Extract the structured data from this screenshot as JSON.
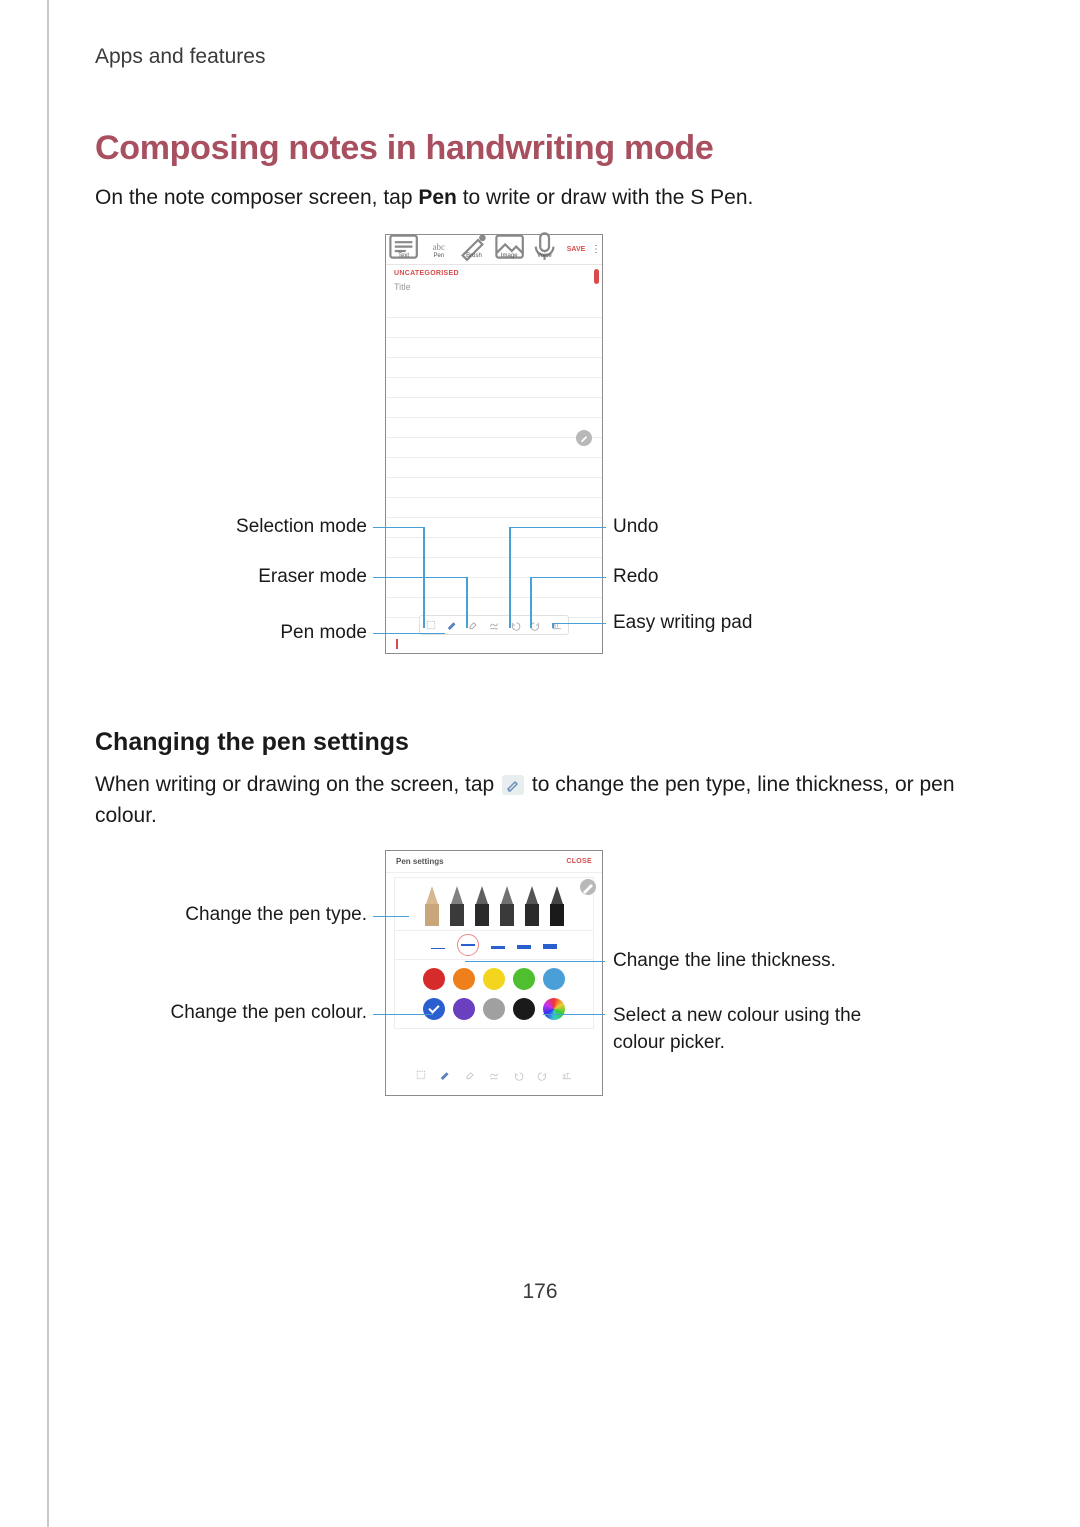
{
  "breadcrumb": "Apps and features",
  "heading1": "Composing notes in handwriting mode",
  "p1_pre": "On the note composer screen, tap ",
  "p1_bold": "Pen",
  "p1_post": " to write or draw with the S Pen.",
  "heading2": "Changing the pen settings",
  "p2_pre": "When writing or drawing on the screen, tap ",
  "p2_post": " to change the pen type, line thickness, or pen colour.",
  "page_number": "176",
  "phone1": {
    "tabs": [
      {
        "label": "Text"
      },
      {
        "label": "Pen"
      },
      {
        "label": "Brush"
      },
      {
        "label": "Image"
      },
      {
        "label": "Voice"
      }
    ],
    "save": "SAVE",
    "category": "UNCATEGORISED",
    "title_placeholder": "Title",
    "callouts_left": [
      {
        "text": "Selection mode"
      },
      {
        "text": "Eraser mode"
      },
      {
        "text": "Pen mode"
      }
    ],
    "callouts_right": [
      {
        "text": "Undo"
      },
      {
        "text": "Redo"
      },
      {
        "text": "Easy writing pad"
      }
    ],
    "callout_line_color": "#4aa0d6"
  },
  "phone2": {
    "header_title": "Pen settings",
    "header_close": "CLOSE",
    "colors_row1": [
      "#d52b2b",
      "#ef7f1a",
      "#f4d51e",
      "#4fbf2f",
      "#4aa0d6"
    ],
    "colors_row2": [
      "#2a5fd0",
      "#6a3fc0",
      "#a0a0a0",
      "#1a1a1a",
      "rainbow"
    ],
    "selected_color_index": 5,
    "callouts_left": [
      {
        "text": "Change the pen type."
      },
      {
        "text": "Change the pen colour."
      }
    ],
    "callouts_right": [
      {
        "text": "Change the line thickness."
      },
      {
        "text": "Select a new colour using the colour picker."
      }
    ]
  }
}
